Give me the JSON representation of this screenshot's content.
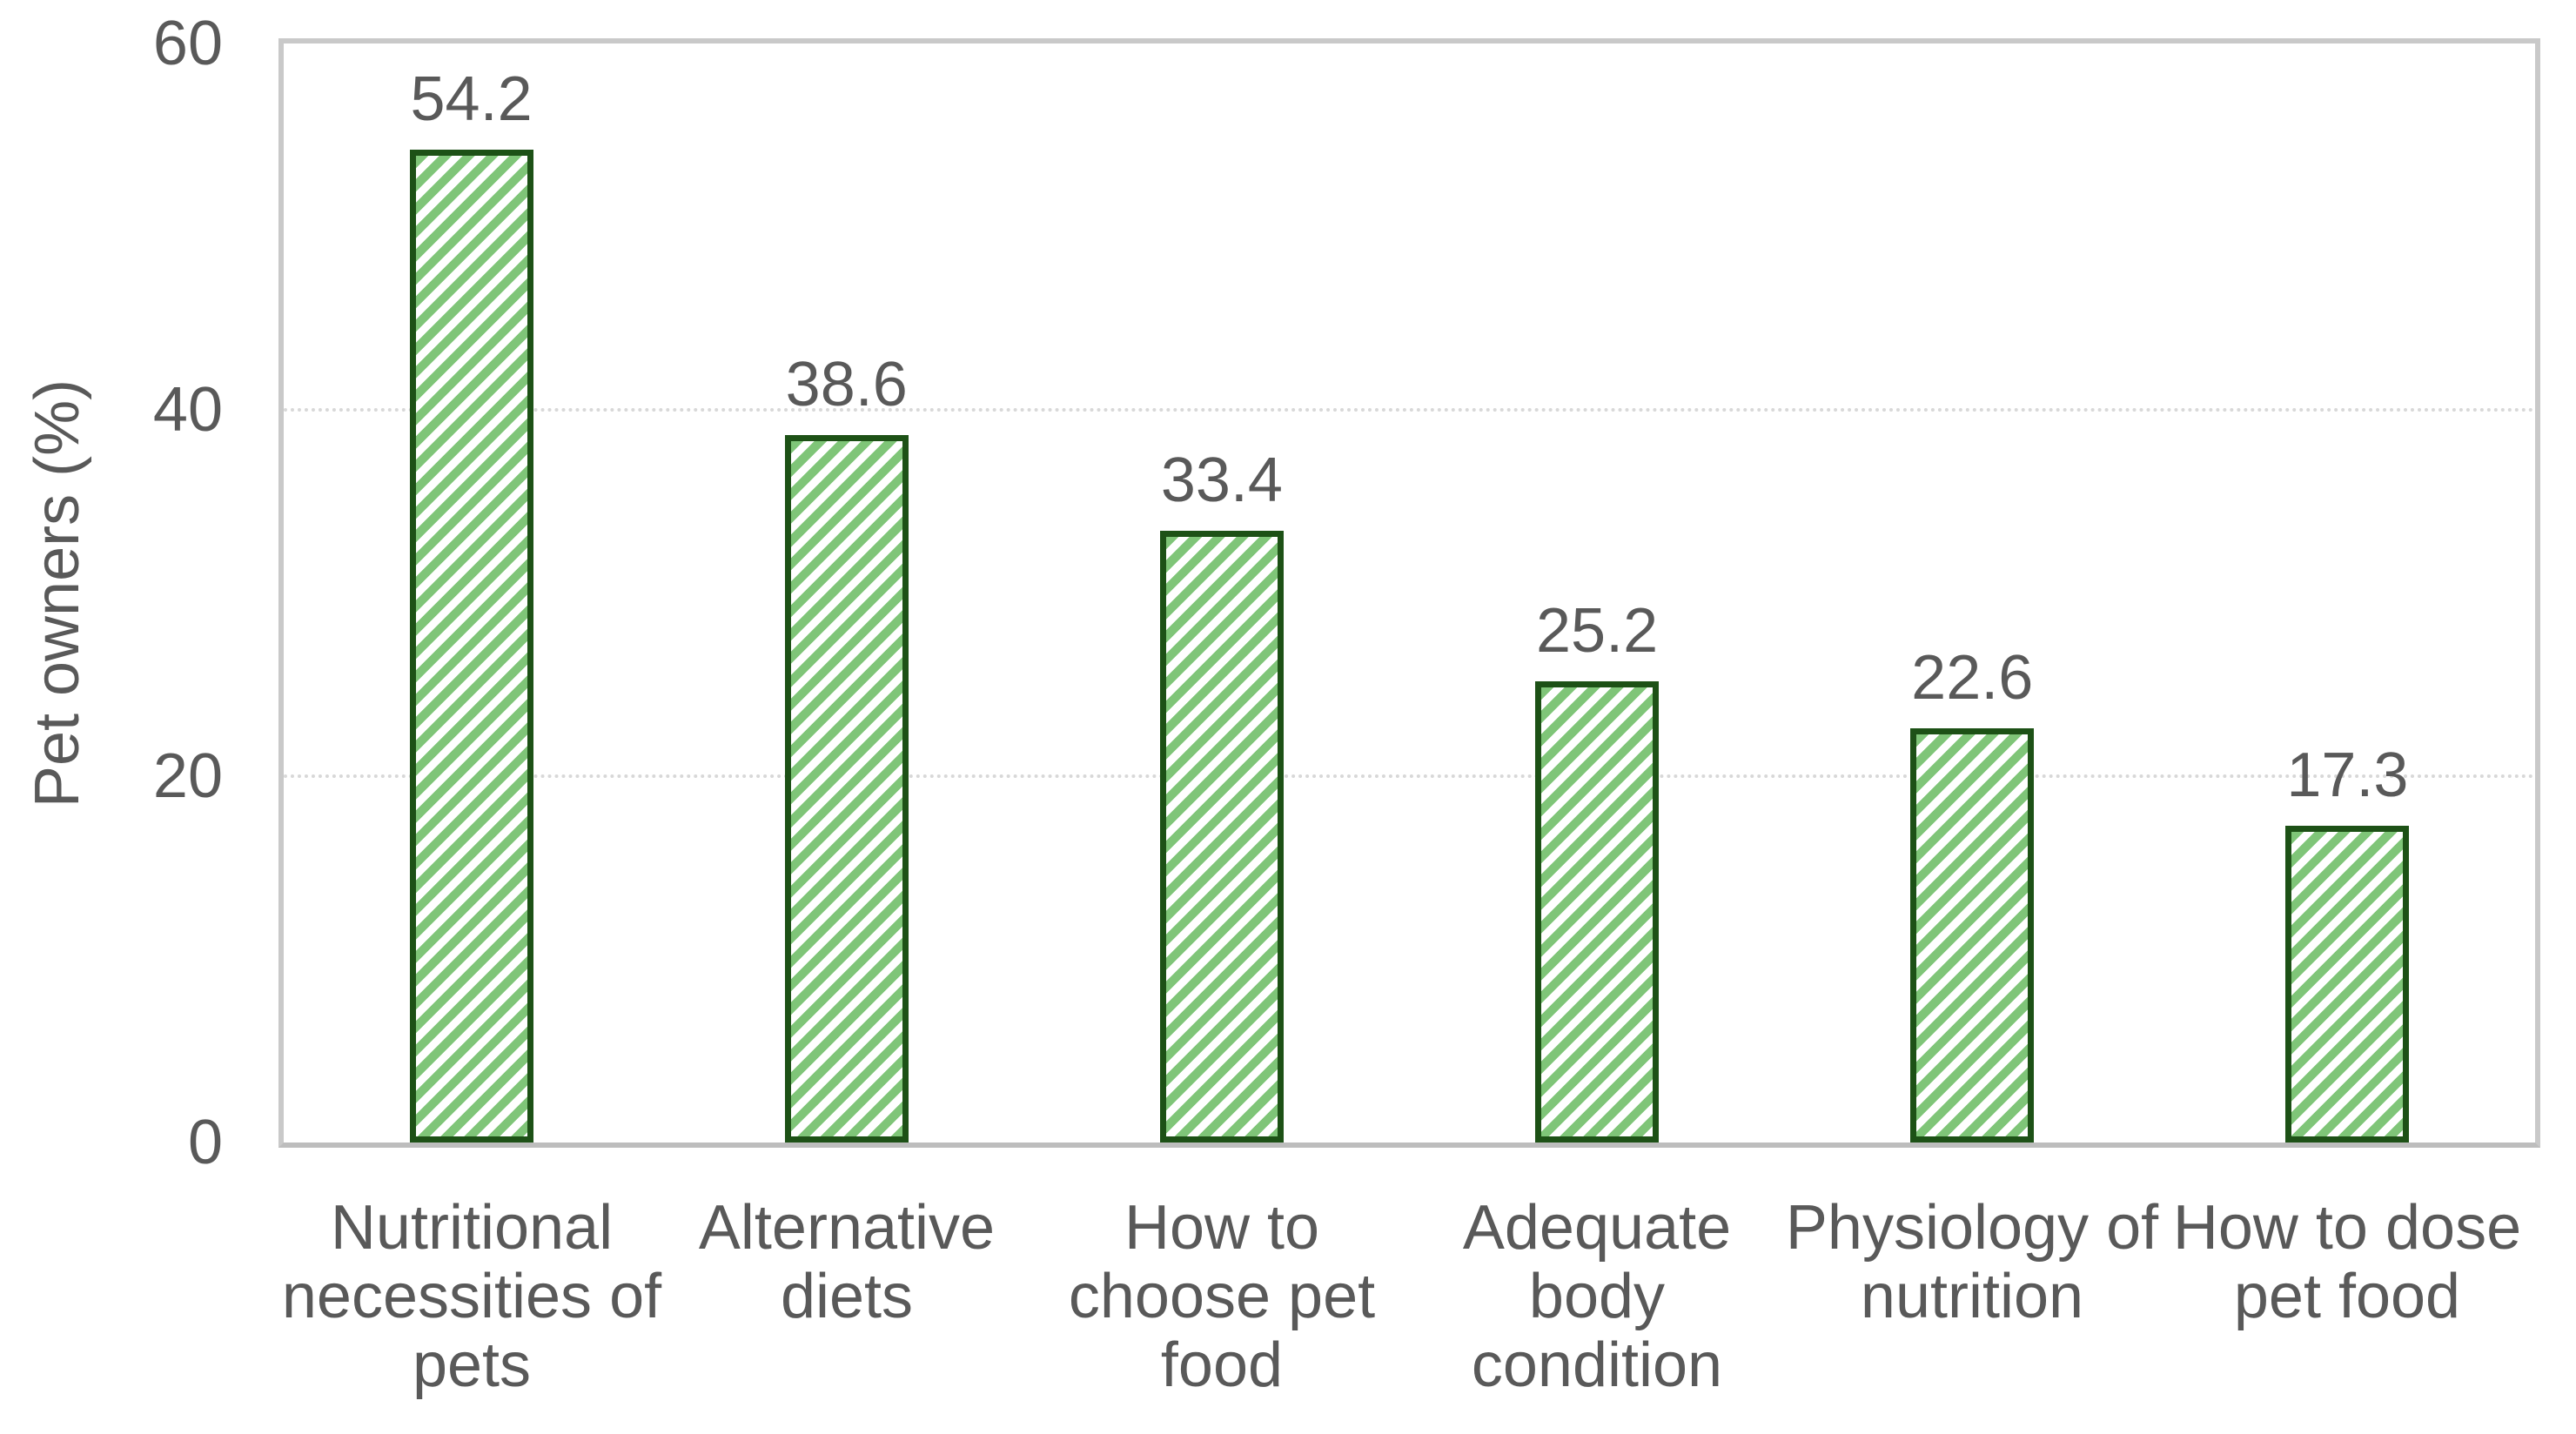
{
  "chart_data": {
    "type": "bar",
    "title": "",
    "xlabel": "",
    "ylabel": "Pet owners (%)",
    "ylim": [
      0,
      60
    ],
    "yticks": [
      0,
      20,
      40,
      60
    ],
    "gridline_values": [
      20,
      40
    ],
    "grid_style": "dotted horizontal gridlines at 20 and 40; solid light-gray plot frame at 0 and 60",
    "legend": "none",
    "categories": [
      "Nutritional necessities of pets",
      "Alternative diets",
      "How to choose pet food",
      "Adequate body condition",
      "Physiology of nutrition",
      "How to dose pet food"
    ],
    "category_display_lines": [
      [
        "Nutritional",
        "necessities of",
        "pets"
      ],
      [
        "Alternative",
        "diets"
      ],
      [
        "How to",
        "choose pet",
        "food"
      ],
      [
        "Adequate",
        "body",
        "condition"
      ],
      [
        "Physiology of",
        "nutrition"
      ],
      [
        "How to dose",
        "pet food"
      ]
    ],
    "values": [
      54.2,
      38.6,
      33.4,
      25.2,
      22.6,
      17.3
    ],
    "value_labels": [
      "54.2",
      "38.6",
      "33.4",
      "25.2",
      "22.6",
      "17.3"
    ],
    "bar_pattern": "light upward diagonal hatch",
    "colors": {
      "bar_hatch_green": "#7fc578",
      "bar_border_green": "#1d5116",
      "text_gray": "#595959",
      "gridline_gray": "#d8d8d8",
      "frame_gray": "#c9c9c9",
      "axis_line_gray": "#bdbdbd",
      "background": "#ffffff"
    }
  }
}
